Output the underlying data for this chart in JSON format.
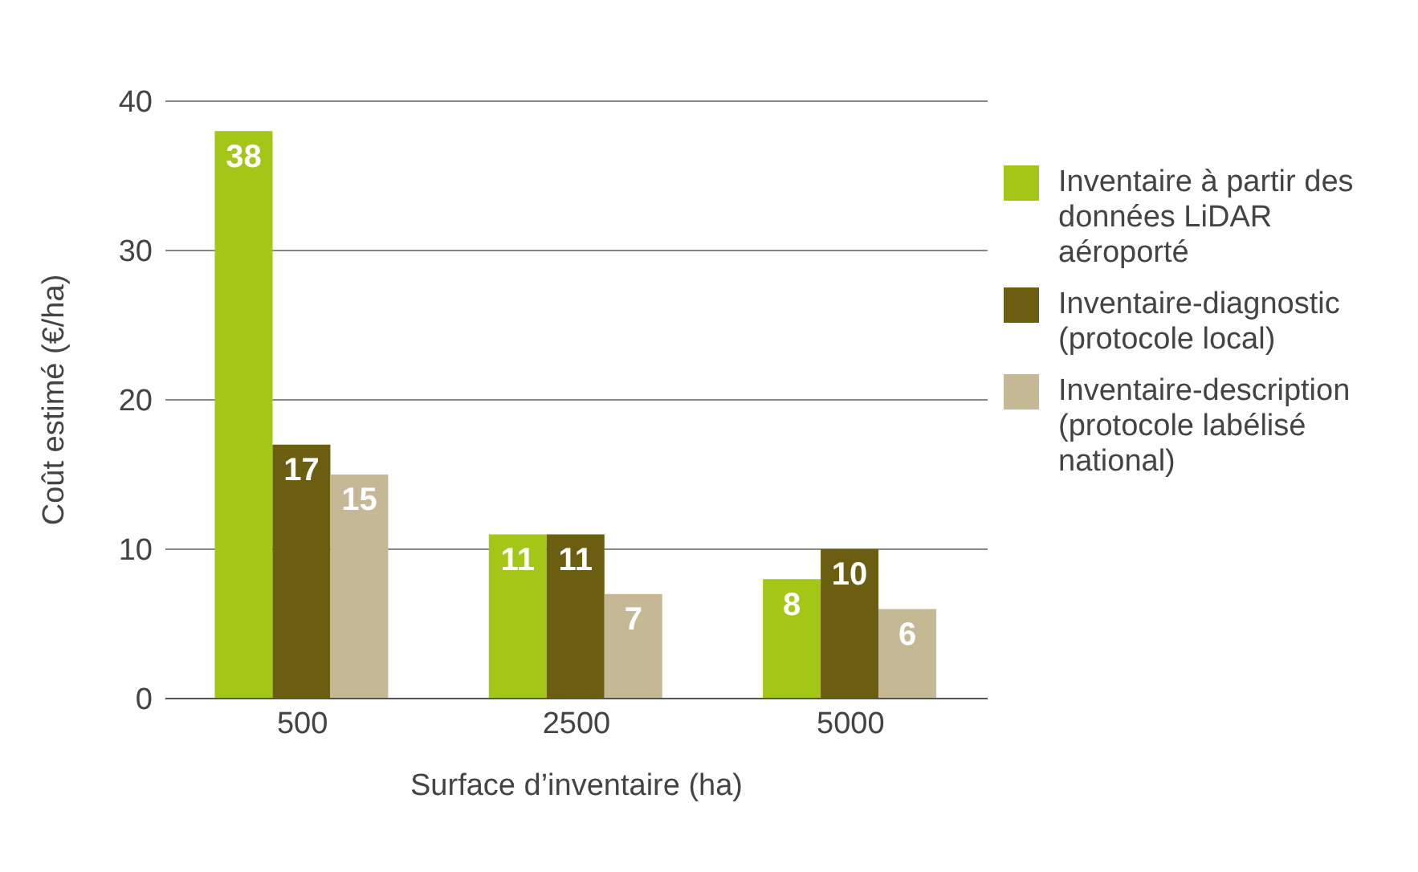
{
  "chart_data": {
    "type": "bar",
    "xlabel": "Surface d’inventaire (ha)",
    "ylabel": "Coût estimé (€/ha)",
    "categories": [
      "500",
      "2500",
      "5000"
    ],
    "series": [
      {
        "name": "Inventaire à partir des données LiDAR aéroporté",
        "color": "#a3c617",
        "values": [
          38,
          11,
          8
        ]
      },
      {
        "name": "Inventaire-diagnostic (protocole local)",
        "color": "#6b5e10",
        "values": [
          17,
          11,
          10
        ]
      },
      {
        "name": "Inventaire-description (protocole labélisé national)",
        "color": "#c4b994",
        "values": [
          15,
          7,
          6
        ]
      }
    ],
    "ylim": [
      0,
      40
    ],
    "yticks": [
      0,
      10,
      20,
      30,
      40
    ],
    "grid": "y",
    "legend": "right",
    "data_labels": true
  }
}
